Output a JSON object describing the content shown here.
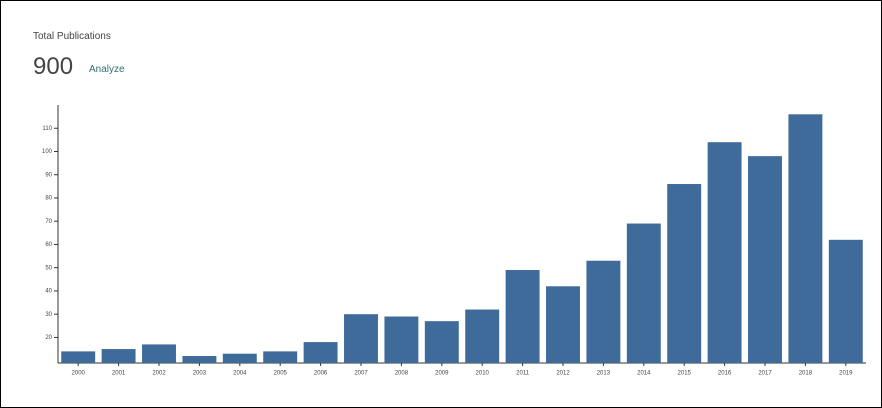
{
  "header": {
    "title": "Total Publications",
    "total": 900,
    "link": "Analyze"
  },
  "chart_data": {
    "type": "bar",
    "categories": [
      "2000",
      "2001",
      "2002",
      "2003",
      "2004",
      "2005",
      "2006",
      "2007",
      "2008",
      "2009",
      "2010",
      "2011",
      "2012",
      "2013",
      "2014",
      "2015",
      "2016",
      "2017",
      "2018",
      "2019"
    ],
    "values": [
      14,
      15,
      17,
      12,
      13,
      14,
      18,
      30,
      29,
      27,
      32,
      49,
      42,
      53,
      69,
      86,
      104,
      98,
      116,
      62
    ],
    "color": "#3f6b9b",
    "ylim": [
      9,
      120
    ],
    "yticks": [
      20,
      30,
      40,
      50,
      60,
      70,
      80,
      90,
      100,
      110
    ]
  }
}
